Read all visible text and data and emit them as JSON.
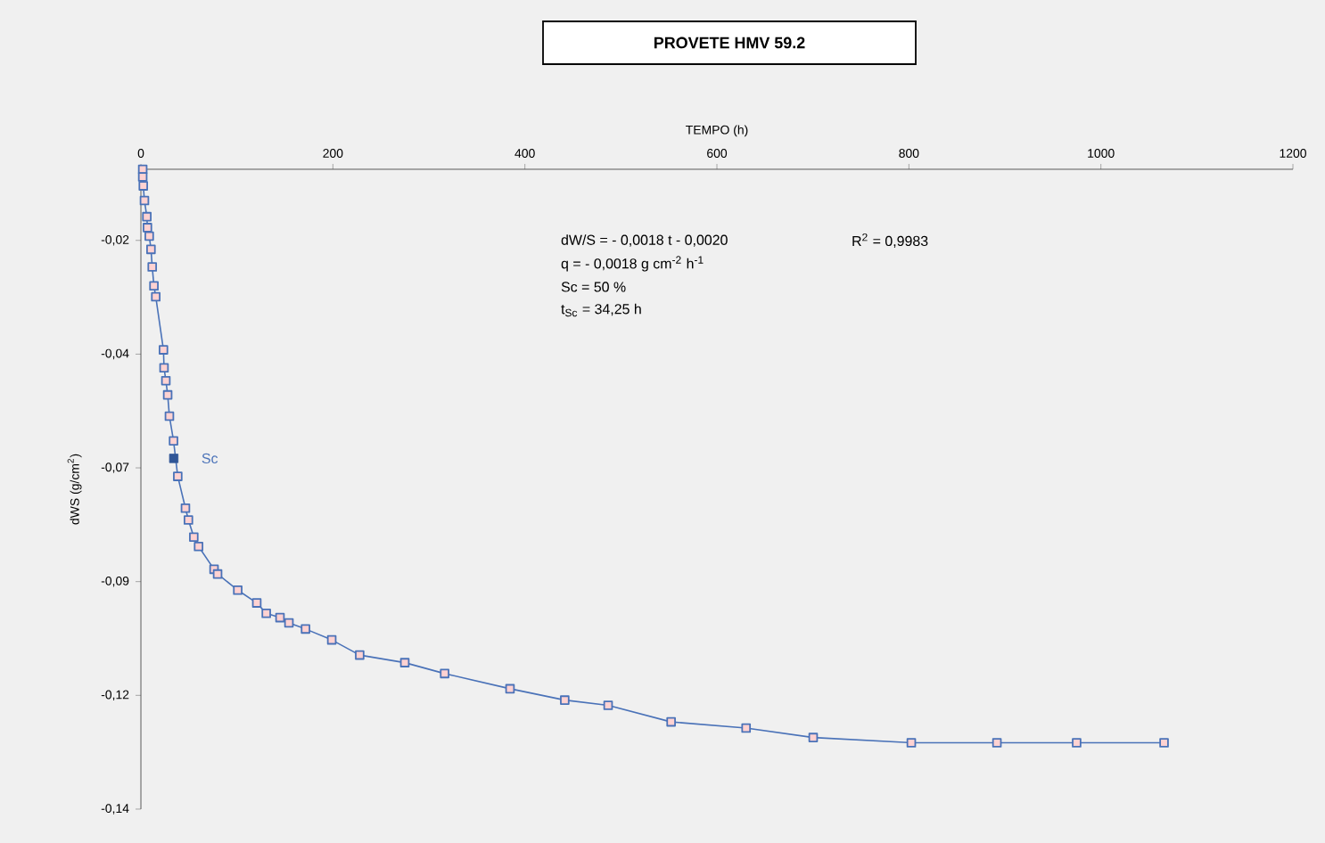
{
  "chart_data": {
    "type": "line",
    "title": "PROVETE HMV 59.2",
    "xlabel": "TEMPO (h)",
    "ylabel": "dWS (g/cm$^{2}$)",
    "xlim": [
      0,
      1200
    ],
    "xticks": [
      0,
      200,
      400,
      600,
      800,
      1000,
      1200
    ],
    "ylim": [
      -0.14,
      -0.005
    ],
    "yticks": [
      {
        "value": -0.02,
        "label": "-0,02"
      },
      {
        "value": -0.044,
        "label": "-0,04"
      },
      {
        "value": -0.068,
        "label": "-0,07"
      },
      {
        "value": -0.092,
        "label": "-0,09"
      },
      {
        "value": -0.116,
        "label": "-0,12"
      },
      {
        "value": -0.14,
        "label": "-0,14"
      }
    ],
    "marker": "square",
    "line_style": "solid",
    "grid": false,
    "series": [
      {
        "color": "#4a72b8",
        "x": [
          1.9,
          1.9,
          2.5,
          3.7,
          6.2,
          6.8,
          8.7,
          10.5,
          11.8,
          13.6,
          15.5,
          23.5,
          24.1,
          26,
          27.9,
          29.7,
          34,
          38.4,
          46.4,
          49.5,
          55.1,
          60.1,
          76.2,
          79.9,
          100.9,
          120.7,
          130.6,
          144.9,
          154.2,
          171.5,
          198.8,
          227.9,
          274.9,
          316.4,
          384.5,
          441.5,
          486.7,
          552.3,
          630.4,
          700.3,
          802.5,
          891.7,
          974.7,
          1065.8
        ],
        "values": [
          -0.005,
          -0.0066,
          -0.0085,
          -0.0116,
          -0.015,
          -0.0173,
          -0.0191,
          -0.0219,
          -0.0256,
          -0.0296,
          -0.0319,
          -0.0431,
          -0.0469,
          -0.0496,
          -0.0526,
          -0.0571,
          -0.0623,
          -0.0698,
          -0.0765,
          -0.079,
          -0.0826,
          -0.0846,
          -0.0894,
          -0.0904,
          -0.0938,
          -0.0965,
          -0.0987,
          -0.0996,
          -0.1007,
          -0.102,
          -0.1043,
          -0.1075,
          -0.1091,
          -0.1114,
          -0.1146,
          -0.117,
          -0.1181,
          -0.1216,
          -0.1229,
          -0.1249,
          -0.126,
          -0.126,
          -0.126,
          -0.126
        ]
      },
      {
        "type": "scatter",
        "color": "#2f5597",
        "x": [
          34.25
        ],
        "values": [
          -0.066
        ]
      }
    ],
    "annotations": [
      {
        "text": "Sc",
        "x": 34.25,
        "y": -0.066
      },
      "dW/S = - 0,0018 t - 0,0020",
      "R$^{2}$ = 0,9983",
      "q = - 0,0018 g cm$^{-2}$ h$^{-1}$",
      "Sc = 50 %",
      "t$_{Sc}$ = 34,25 h"
    ]
  }
}
